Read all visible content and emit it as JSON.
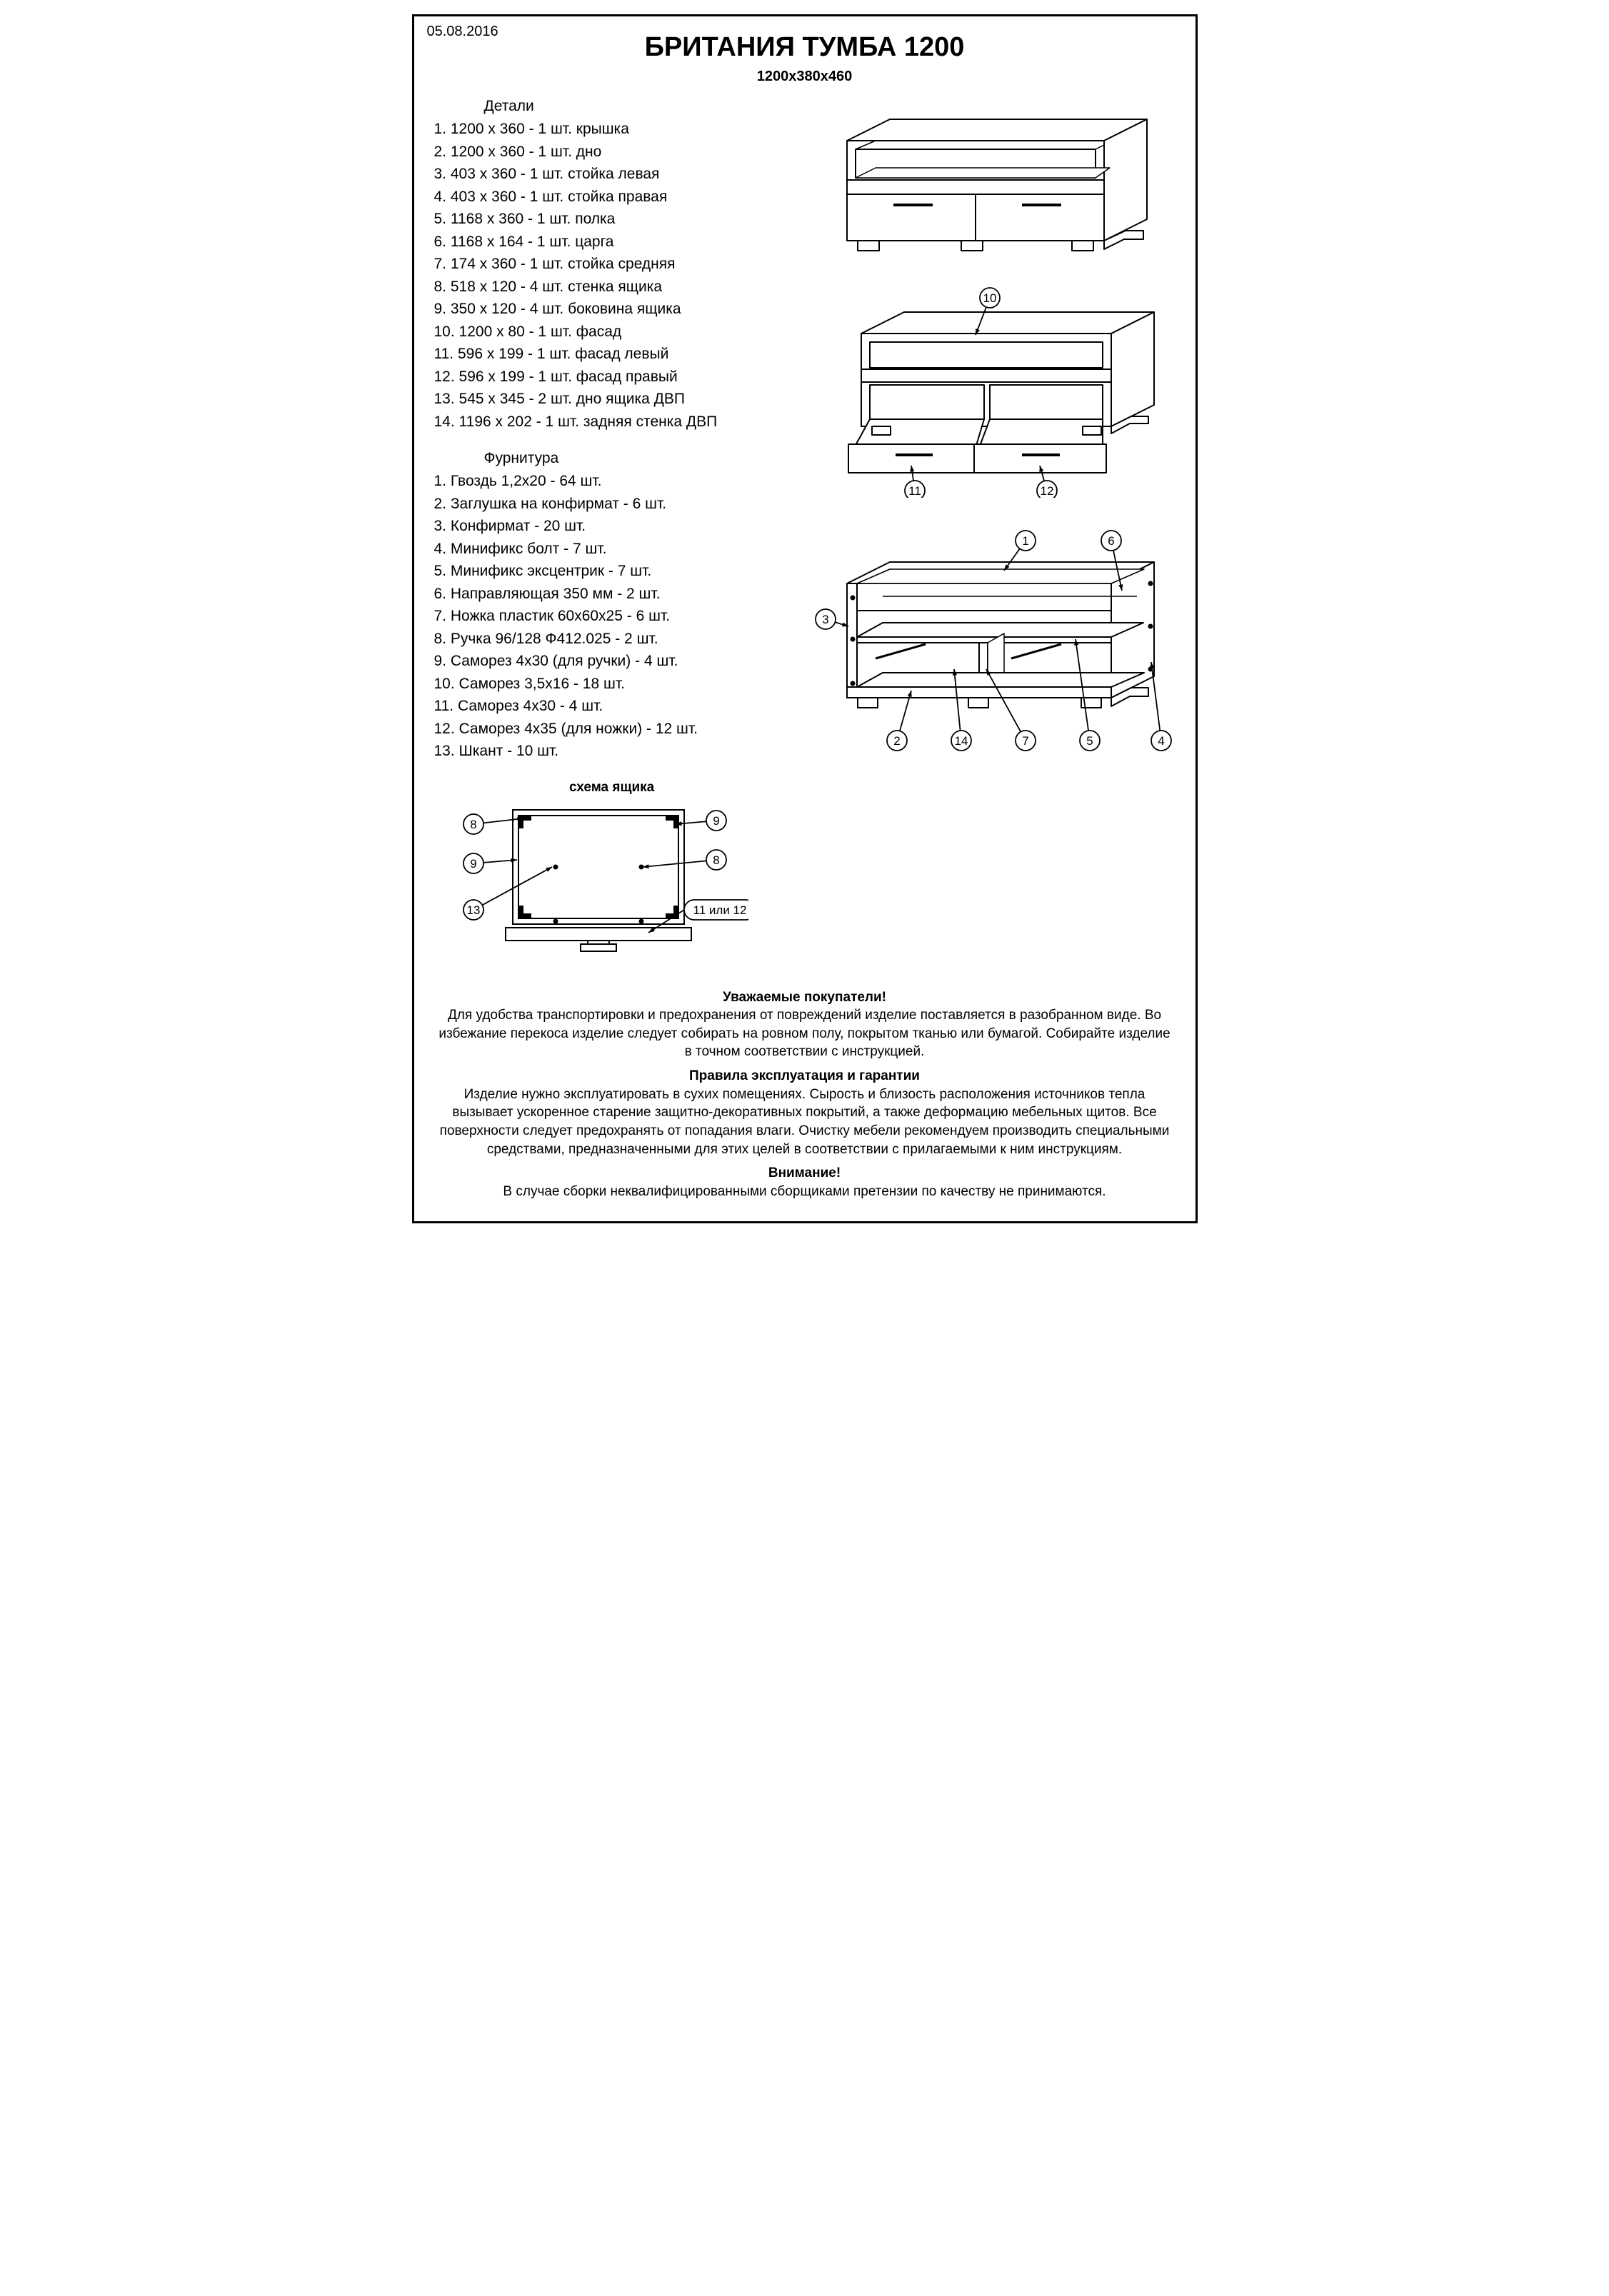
{
  "date": "05.08.2016",
  "title": "БРИТАНИЯ ТУМБА 1200",
  "dimensions": "1200х380х460",
  "parts_heading": "Детали",
  "parts": [
    "1. 1200 х 360 - 1 шт. крышка",
    "2. 1200 х 360 - 1 шт. дно",
    "3. 403 х 360 - 1 шт. стойка левая",
    "4. 403 х 360 - 1 шт. стойка правая",
    "5. 1168 х 360 - 1 шт. полка",
    "6. 1168 х 164 - 1 шт. царга",
    "7. 174 х 360 - 1 шт. стойка средняя",
    "8. 518 х 120 - 4 шт. стенка ящика",
    "9. 350 х 120 - 4 шт. боковина  ящика",
    "10. 1200 х 80 - 1 шт. фасад",
    "11. 596 х 199 - 1 шт. фасад левый",
    "12. 596 х 199 - 1 шт. фасад правый",
    "13. 545 х 345 - 2 шт. дно ящика ДВП",
    "14. 1196 х 202 - 1 шт. задняя стенка ДВП"
  ],
  "hardware_heading": "Фурнитура",
  "hardware": [
    "1. Гвоздь 1,2х20 - 64 шт.",
    "2. Заглушка на конфирмат - 6 шт.",
    "3. Конфирмат - 20 шт.",
    "4. Минификс болт - 7 шт.",
    "5. Минификс эксцентрик - 7 шт.",
    "6. Направляющая 350 мм - 2 шт.",
    "7. Ножка пластик 60х60х25 - 6 шт.",
    "8. Ручка 96/128 Ф412.025 - 2 шт.",
    "9. Саморез 4х30 (для ручки) - 4 шт.",
    "10. Саморез 3,5х16 - 18 шт.",
    "11. Саморез 4х30 - 4 шт.",
    "12. Саморез 4х35 (для ножки) - 12 шт.",
    "13. Шкант - 10 шт."
  ],
  "drawer_scheme_label": "схема ящика",
  "callouts_fig2": {
    "a": "10",
    "b": "11",
    "c": "12"
  },
  "callouts_fig3": {
    "a": "1",
    "b": "6",
    "c": "3",
    "d": "2",
    "e": "14",
    "f": "7",
    "g": "5",
    "h": "4"
  },
  "callouts_drawer": {
    "a": "8",
    "b": "9",
    "c": "9",
    "d": "8",
    "e": "13",
    "f": "11 или 12"
  },
  "footer": {
    "h1": "Уважаемые покупатели!",
    "p1": "Для удобства транспортировки и предохранения от повреждений изделие поставляется в разобранном виде. Во избежание перекоса изделие следует собирать на ровном полу, покрытом тканью или бумагой. Собирайте изделие в точном соответствии с инструкцией.",
    "h2": "Правила эксплуатация и гарантии",
    "p2": "Изделие нужно эксплуатировать в сухих помещениях. Сырость и близость расположения источников тепла вызывает ускоренное старение защитно-декоративных покрытий, а также деформацию мебельных щитов. Все поверхности следует предохранять от попадания влаги. Очистку мебели рекомендуем производить специальными средствами, предназначенными для этих целей в соответствии с прилагаемыми к ним инструкциям.",
    "h3": "Внимание!",
    "p3": "В случае сборки неквалифицированными сборщиками претензии по качеству не принимаются."
  },
  "style": {
    "stroke": "#000000",
    "fill": "#ffffff",
    "stroke_width": 2,
    "callout_radius": 14,
    "callout_font_size": 17
  }
}
